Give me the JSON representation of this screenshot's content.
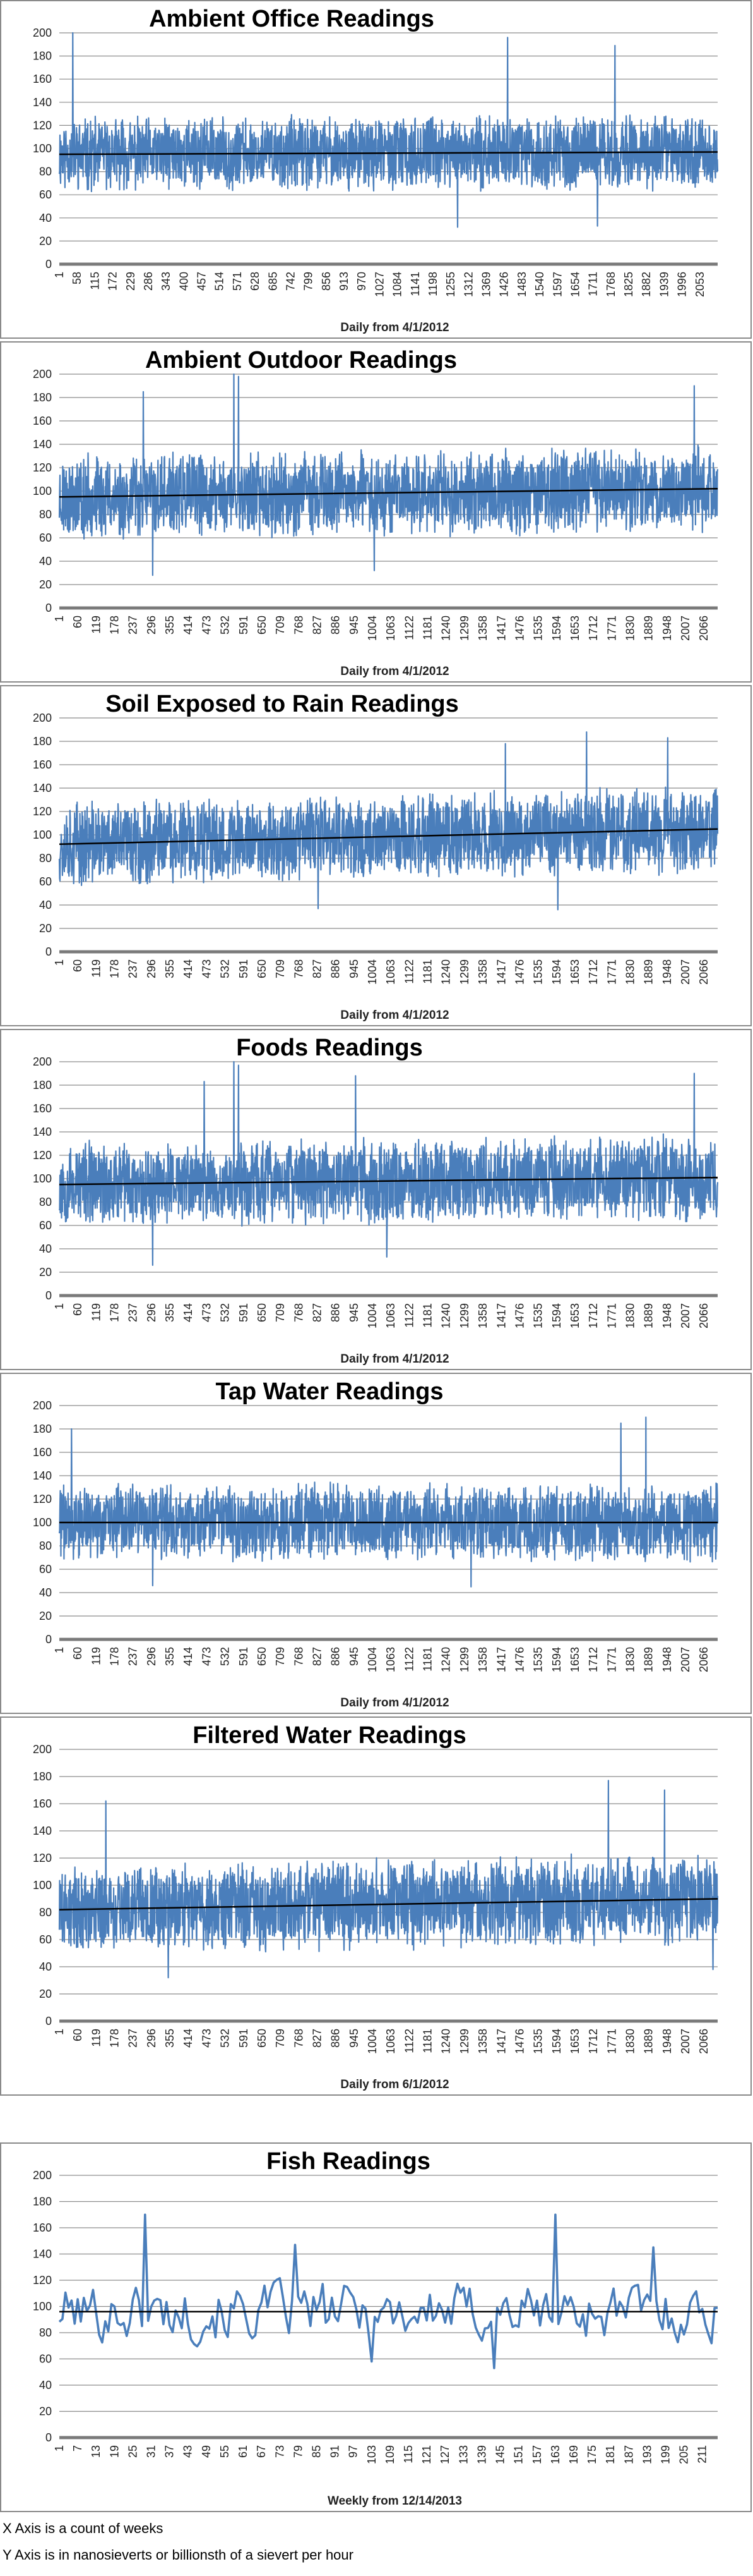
{
  "chart_data": [
    {
      "type": "line",
      "title": "Ambient Office Readings",
      "xlabel": "Daily from 4/1/2012",
      "ylabel": "",
      "ylim": [
        0,
        200
      ],
      "yticks": [
        0,
        20,
        40,
        60,
        80,
        100,
        120,
        140,
        160,
        180,
        200
      ],
      "xticks": [
        1,
        58,
        115,
        172,
        229,
        286,
        343,
        400,
        457,
        514,
        571,
        628,
        685,
        742,
        799,
        856,
        913,
        970,
        1027,
        1084,
        1141,
        1198,
        1255,
        1312,
        1369,
        1426,
        1483,
        1540,
        1597,
        1654,
        1711,
        1768,
        1825,
        1882,
        1939,
        1996,
        2053
      ],
      "xmax": 2110,
      "grid": true,
      "legend": "none",
      "color": "#4a7ebb",
      "series": [
        {
          "kind": "daily",
          "mean": 96,
          "amplitude": 26,
          "seed": 11,
          "spikes": [
            [
              44,
              200
            ],
            [
              1437,
              196
            ],
            [
              1781,
              189
            ],
            [
              1277,
              32
            ],
            [
              1725,
              33
            ]
          ],
          "trend": [
            95,
            97
          ]
        }
      ]
    },
    {
      "type": "line",
      "title": "Ambient Outdoor Readings",
      "xlabel": "Daily from 4/1/2012",
      "ylabel": "",
      "ylim": [
        0,
        200
      ],
      "yticks": [
        0,
        20,
        40,
        60,
        80,
        100,
        120,
        140,
        160,
        180,
        200
      ],
      "xticks": [
        1,
        60,
        119,
        178,
        237,
        296,
        355,
        414,
        473,
        532,
        591,
        650,
        709,
        768,
        827,
        886,
        945,
        1004,
        1063,
        1122,
        1181,
        1240,
        1299,
        1358,
        1417,
        1476,
        1535,
        1594,
        1653,
        1712,
        1771,
        1830,
        1889,
        1948,
        2007,
        2066
      ],
      "xmax": 2110,
      "grid": true,
      "legend": "none",
      "color": "#4a7ebb",
      "series": [
        {
          "kind": "daily",
          "mean": 98,
          "amplitude": 30,
          "seed": 23,
          "spikes": [
            [
              270,
              185
            ],
            [
              560,
              200
            ],
            [
              575,
              198
            ],
            [
              2035,
              190
            ],
            [
              300,
              28
            ],
            [
              1010,
              32
            ]
          ],
          "trend": [
            95,
            102
          ]
        }
      ]
    },
    {
      "type": "line",
      "title": "Soil Exposed to Rain Readings",
      "xlabel": "Daily from 4/1/2012",
      "ylabel": "",
      "ylim": [
        0,
        200
      ],
      "yticks": [
        0,
        20,
        40,
        60,
        80,
        100,
        120,
        140,
        160,
        180,
        200
      ],
      "xticks": [
        1,
        60,
        119,
        178,
        237,
        296,
        355,
        414,
        473,
        532,
        591,
        650,
        709,
        768,
        827,
        886,
        945,
        1004,
        1063,
        1122,
        1181,
        1240,
        1299,
        1358,
        1417,
        1476,
        1535,
        1594,
        1653,
        1712,
        1771,
        1830,
        1889,
        1948,
        2007,
        2066
      ],
      "xmax": 2110,
      "grid": true,
      "legend": "none",
      "color": "#4a7ebb",
      "series": [
        {
          "kind": "daily",
          "mean": 100,
          "amplitude": 30,
          "seed": 37,
          "spikes": [
            [
              1430,
              178
            ],
            [
              1690,
              188
            ],
            [
              1950,
              183
            ],
            [
              830,
              37
            ],
            [
              1598,
              36
            ]
          ],
          "trend": [
            92,
            105
          ]
        }
      ]
    },
    {
      "type": "line",
      "title": "Foods Readings",
      "xlabel": "Daily from 4/1/2012",
      "ylabel": "",
      "ylim": [
        0,
        200
      ],
      "yticks": [
        0,
        20,
        40,
        60,
        80,
        100,
        120,
        140,
        160,
        180,
        200
      ],
      "xticks": [
        1,
        60,
        119,
        178,
        237,
        296,
        355,
        414,
        473,
        532,
        591,
        650,
        709,
        768,
        827,
        886,
        945,
        1004,
        1063,
        1122,
        1181,
        1240,
        1299,
        1358,
        1417,
        1476,
        1535,
        1594,
        1653,
        1712,
        1771,
        1830,
        1889,
        1948,
        2007,
        2066
      ],
      "xmax": 2110,
      "grid": true,
      "legend": "none",
      "color": "#4a7ebb",
      "series": [
        {
          "kind": "daily",
          "mean": 98,
          "amplitude": 30,
          "seed": 53,
          "spikes": [
            [
              465,
              183
            ],
            [
              560,
              200
            ],
            [
              575,
              197
            ],
            [
              950,
              188
            ],
            [
              2035,
              190
            ],
            [
              300,
              26
            ],
            [
              1050,
              33
            ]
          ],
          "trend": [
            95,
            101
          ]
        }
      ]
    },
    {
      "type": "line",
      "title": "Tap Water Readings",
      "xlabel": "Daily from 4/1/2012",
      "ylabel": "",
      "ylim": [
        0,
        200
      ],
      "yticks": [
        0,
        20,
        40,
        60,
        80,
        100,
        120,
        140,
        160,
        180,
        200
      ],
      "xticks": [
        1,
        60,
        119,
        178,
        237,
        296,
        355,
        414,
        473,
        532,
        591,
        650,
        709,
        768,
        827,
        886,
        945,
        1004,
        1063,
        1122,
        1181,
        1240,
        1299,
        1358,
        1417,
        1476,
        1535,
        1594,
        1653,
        1712,
        1771,
        1830,
        1889,
        1948,
        2007,
        2066
      ],
      "xmax": 2110,
      "grid": true,
      "legend": "none",
      "color": "#4a7ebb",
      "series": [
        {
          "kind": "daily",
          "mean": 100,
          "amplitude": 27,
          "seed": 71,
          "spikes": [
            [
              40,
              180
            ],
            [
              1880,
              190
            ],
            [
              1800,
              185
            ],
            [
              300,
              46
            ],
            [
              1320,
              45
            ]
          ],
          "trend": [
            100,
            100
          ]
        }
      ]
    },
    {
      "type": "line",
      "title": "Filtered Water Readings",
      "xlabel": "Daily from 6/1/2012",
      "ylabel": "",
      "ylim": [
        0,
        200
      ],
      "yticks": [
        0,
        20,
        40,
        60,
        80,
        100,
        120,
        140,
        160,
        180,
        200
      ],
      "xticks": [
        1,
        60,
        119,
        178,
        237,
        296,
        355,
        414,
        473,
        532,
        591,
        650,
        709,
        768,
        827,
        886,
        945,
        1004,
        1063,
        1122,
        1181,
        1240,
        1299,
        1358,
        1417,
        1476,
        1535,
        1594,
        1653,
        1712,
        1771,
        1830,
        1889,
        1948,
        2007,
        2066
      ],
      "xmax": 2110,
      "grid": true,
      "legend": "none",
      "color": "#4a7ebb",
      "series": [
        {
          "kind": "daily",
          "mean": 85,
          "amplitude": 27,
          "seed": 89,
          "spikes": [
            [
              150,
              162
            ],
            [
              1760,
              177
            ],
            [
              1940,
              170
            ],
            [
              350,
              32
            ],
            [
              2095,
              38
            ]
          ],
          "trend": [
            82,
            90
          ]
        }
      ]
    },
    {
      "type": "line",
      "title": "Fish Readings",
      "xlabel": "Weekly from 12/14/2013",
      "ylabel": "",
      "ylim": [
        0,
        200
      ],
      "yticks": [
        0,
        20,
        40,
        60,
        80,
        100,
        120,
        140,
        160,
        180,
        200
      ],
      "xticks": [
        1,
        7,
        13,
        19,
        25,
        31,
        37,
        43,
        49,
        55,
        61,
        67,
        73,
        79,
        85,
        91,
        97,
        103,
        109,
        115,
        121,
        127,
        133,
        139,
        145,
        151,
        157,
        163,
        169,
        175,
        181,
        187,
        193,
        199,
        205,
        211
      ],
      "xmax": 216,
      "grid": true,
      "legend": "none",
      "color": "#4a7ebb",
      "series": [
        {
          "kind": "weekly",
          "mean": 97,
          "amplitude": 18,
          "seed": 101,
          "spikes": [
            [
              29,
              170
            ],
            [
              163,
              170
            ],
            [
              195,
              145
            ],
            [
              78,
              147
            ],
            [
              103,
              58
            ],
            [
              143,
              53
            ]
          ],
          "trend": [
            96,
            96
          ]
        }
      ]
    }
  ],
  "notes": {
    "x_axis": "X Axis is a count of weeks",
    "y_axis": "Y Axis is in nanosieverts or billionsth of a sievert per hour"
  }
}
